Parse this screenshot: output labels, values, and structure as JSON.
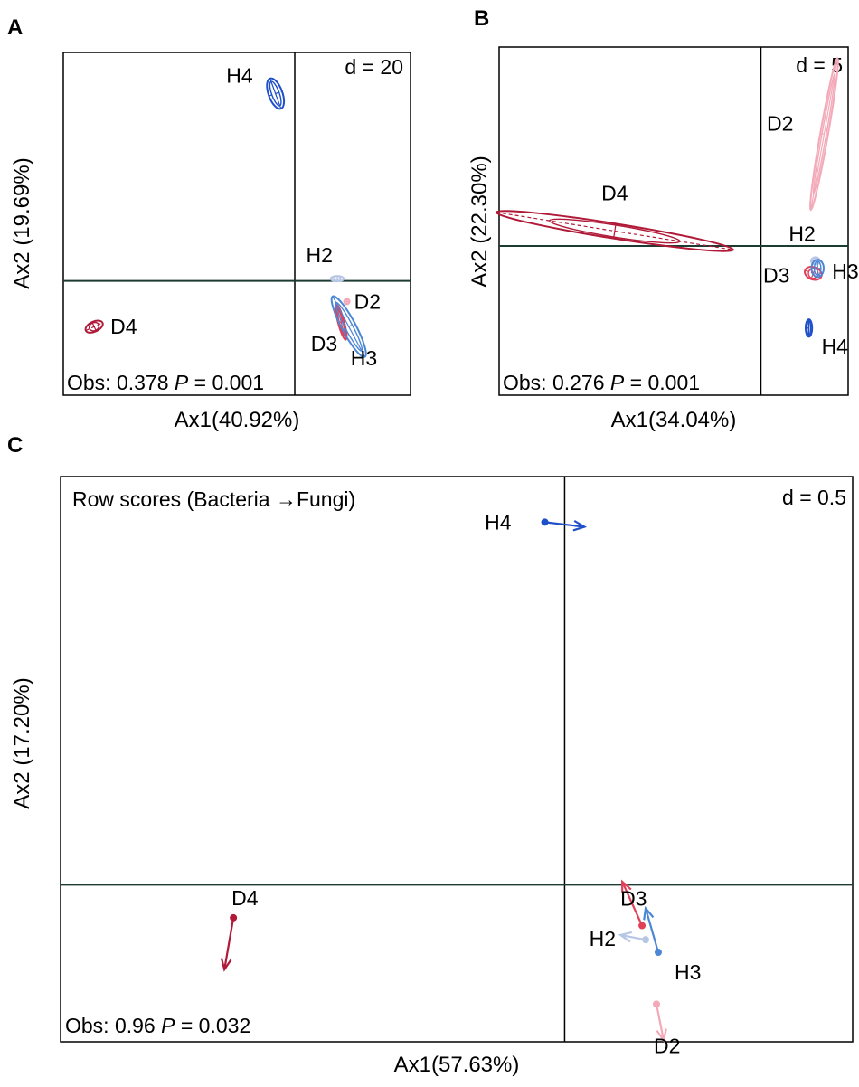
{
  "chart_data": [
    {
      "panel": "A",
      "type": "scatter",
      "scale_label": "d = 20",
      "xlabel": "Ax1(40.92%)",
      "ylabel": "Ax2 (19.69%)",
      "stats": {
        "prefix": "Obs: 0.378 ",
        "p_symbol": "P",
        "p_value": " = 0.001"
      },
      "grid": false,
      "xlim": [
        -60,
        30
      ],
      "ylim": [
        -25,
        50
      ],
      "groups": [
        {
          "name": "H4",
          "color": "#1f4fc9",
          "x": -5,
          "y": 41,
          "rx": 1.8,
          "ry": 3.5,
          "angle": -20
        },
        {
          "name": "H2",
          "color": "#b8c6e6",
          "x": 11,
          "y": 0.5,
          "rx": 1.7,
          "ry": 0.6,
          "angle": 0
        },
        {
          "name": "D2",
          "color": "#f4a9b8",
          "x": 13.5,
          "y": -4.5,
          "rx": 0.7,
          "ry": 0.6,
          "angle": 0
        },
        {
          "name": "D3",
          "color": "#e04058",
          "x": 12,
          "y": -9,
          "rx": 0.8,
          "ry": 4,
          "angle": -15
        },
        {
          "name": "H3",
          "color": "#4c86d6",
          "x": 14,
          "y": -10,
          "rx": 1.8,
          "ry": 7.5,
          "angle": -28
        },
        {
          "name": "D4",
          "color": "#b01a38",
          "x": -52,
          "y": -10,
          "rx": 2.4,
          "ry": 1.1,
          "angle": -25
        }
      ]
    },
    {
      "panel": "B",
      "type": "scatter",
      "scale_label": "d = 5",
      "xlabel": "Ax1(34.04%)",
      "ylabel": "Ax2 (22.30%)",
      "stats": {
        "prefix": "Obs: 0.276 ",
        "p_symbol": "P",
        "p_value": " = 0.001"
      },
      "grid": false,
      "xlim": [
        -12,
        4
      ],
      "ylim": [
        -6,
        8
      ],
      "groups": [
        {
          "name": "D2",
          "color": "#f4a9b8",
          "x": 2.9,
          "y": 4.5,
          "rx": 0.18,
          "ry": 3.1,
          "angle": 10
        },
        {
          "name": "D4",
          "color": "#b01a38",
          "x": -6.7,
          "y": 0.6,
          "rx": 5.5,
          "ry": 0.3,
          "angle": 9
        },
        {
          "name": "H2",
          "color": "#b8c6e6",
          "x": 2.5,
          "y": -0.6,
          "rx": 0.2,
          "ry": 0.15,
          "angle": 0
        },
        {
          "name": "D3",
          "color": "#e04058",
          "x": 2.4,
          "y": -1.1,
          "rx": 0.4,
          "ry": 0.25,
          "angle": 20
        },
        {
          "name": "H3",
          "color": "#4c86d6",
          "x": 2.6,
          "y": -0.9,
          "rx": 0.28,
          "ry": 0.35,
          "angle": 0
        },
        {
          "name": "H4",
          "color": "#1f4fc9",
          "x": 2.2,
          "y": -3.3,
          "rx": 0.15,
          "ry": 0.35,
          "angle": 0
        }
      ]
    },
    {
      "panel": "C",
      "type": "scatter",
      "title": "Row scores (Bacteria →Fungi)",
      "scale_label": "d = 0.5",
      "xlabel": "Ax1(57.63%)",
      "ylabel": "Ax2 (17.20%)",
      "stats": {
        "prefix": "Obs: 0.96 ",
        "p_symbol": "P",
        "p_value": " = 0.032"
      },
      "grid": false,
      "xlim": [
        -2.8,
        1.6
      ],
      "ylim": [
        -1,
        2.6
      ],
      "arrows": [
        {
          "name": "H4",
          "color": "#1f4fc9",
          "from": [
            -0.11,
            2.31
          ],
          "to": [
            0.11,
            2.28
          ]
        },
        {
          "name": "D4",
          "color": "#b01a38",
          "from": [
            -1.84,
            -0.21
          ],
          "to": [
            -1.89,
            -0.54
          ]
        },
        {
          "name": "D3",
          "color": "#e04058",
          "from": [
            0.43,
            -0.26
          ],
          "to": [
            0.32,
            0.02
          ]
        },
        {
          "name": "H2",
          "color": "#b8c6e6",
          "from": [
            0.45,
            -0.35
          ],
          "to": [
            0.31,
            -0.32
          ]
        },
        {
          "name": "H3",
          "color": "#4c86d6",
          "from": [
            0.52,
            -0.43
          ],
          "to": [
            0.45,
            -0.15
          ]
        },
        {
          "name": "D2",
          "color": "#f4a9b8",
          "from": [
            0.51,
            -0.76
          ],
          "to": [
            0.55,
            -0.99
          ]
        }
      ]
    }
  ]
}
